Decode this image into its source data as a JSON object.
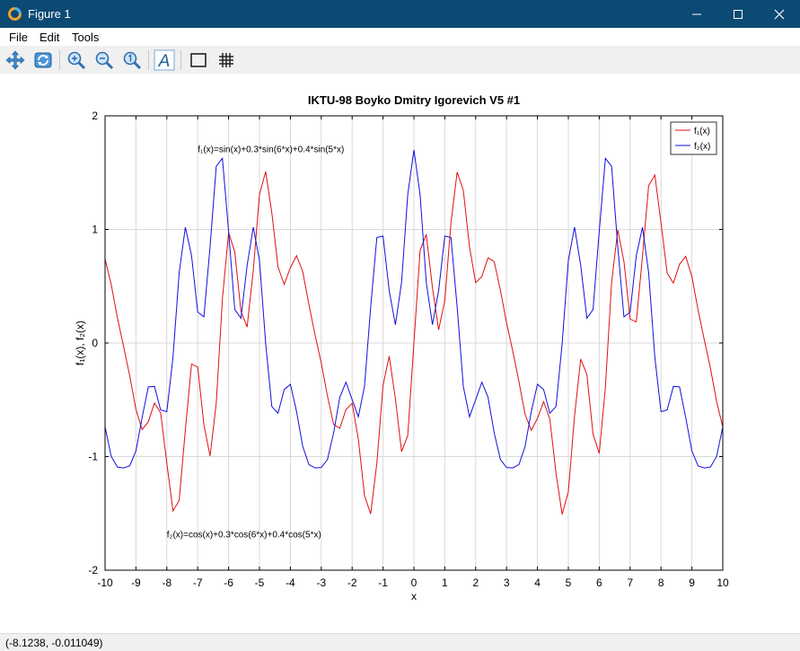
{
  "window": {
    "title": "Figure 1"
  },
  "menu": {
    "file": "File",
    "edit": "Edit",
    "tools": "Tools"
  },
  "toolbar": {
    "icons": [
      "pan-icon",
      "rotate-icon",
      "zoom-in-icon",
      "zoom-out-icon",
      "zoom-reset-icon",
      "insert-text-icon",
      "toggle-axes-box-icon",
      "toggle-grid-icon"
    ]
  },
  "status": {
    "coords": "(-8.1238, -0.011049)"
  },
  "chart_data": {
    "type": "line",
    "title": "IKTU-98 Boyko Dmitry Igorevich V5 #1",
    "xlabel": "x",
    "ylabel": "f₁(x), f₂(x)",
    "xlim": [
      -10,
      10
    ],
    "ylim": [
      -2,
      2
    ],
    "xticks": [
      -10,
      -9,
      -8,
      -7,
      -6,
      -5,
      -4,
      -3,
      -2,
      -1,
      0,
      1,
      2,
      3,
      4,
      5,
      6,
      7,
      8,
      9,
      10
    ],
    "yticks": [
      -2,
      -1,
      0,
      1,
      2
    ],
    "grid": true,
    "legend_position": "top-right",
    "x_start": -10,
    "x_step": 0.2,
    "n_points": 101,
    "series": [
      {
        "name": "f₁(x)",
        "color": "#e01010",
        "formula": "sin(x)+0.3*sin(6*x)+0.4*sin(5*x)"
      },
      {
        "name": "f₂(x)",
        "color": "#1010e0",
        "formula": "cos(x)+0.3*cos(6*x)+0.4*cos(5*x)"
      }
    ],
    "annotations": [
      {
        "text": "f₁(x)=sin(x)+0.3*sin(6*x)+0.4*sin(5*x)",
        "x": -7.0,
        "y": 1.68
      },
      {
        "text": "f₂(x)=cos(x)+0.3*cos(6*x)+0.4*cos(5*x)",
        "x": -8.0,
        "y": -1.71
      }
    ]
  }
}
